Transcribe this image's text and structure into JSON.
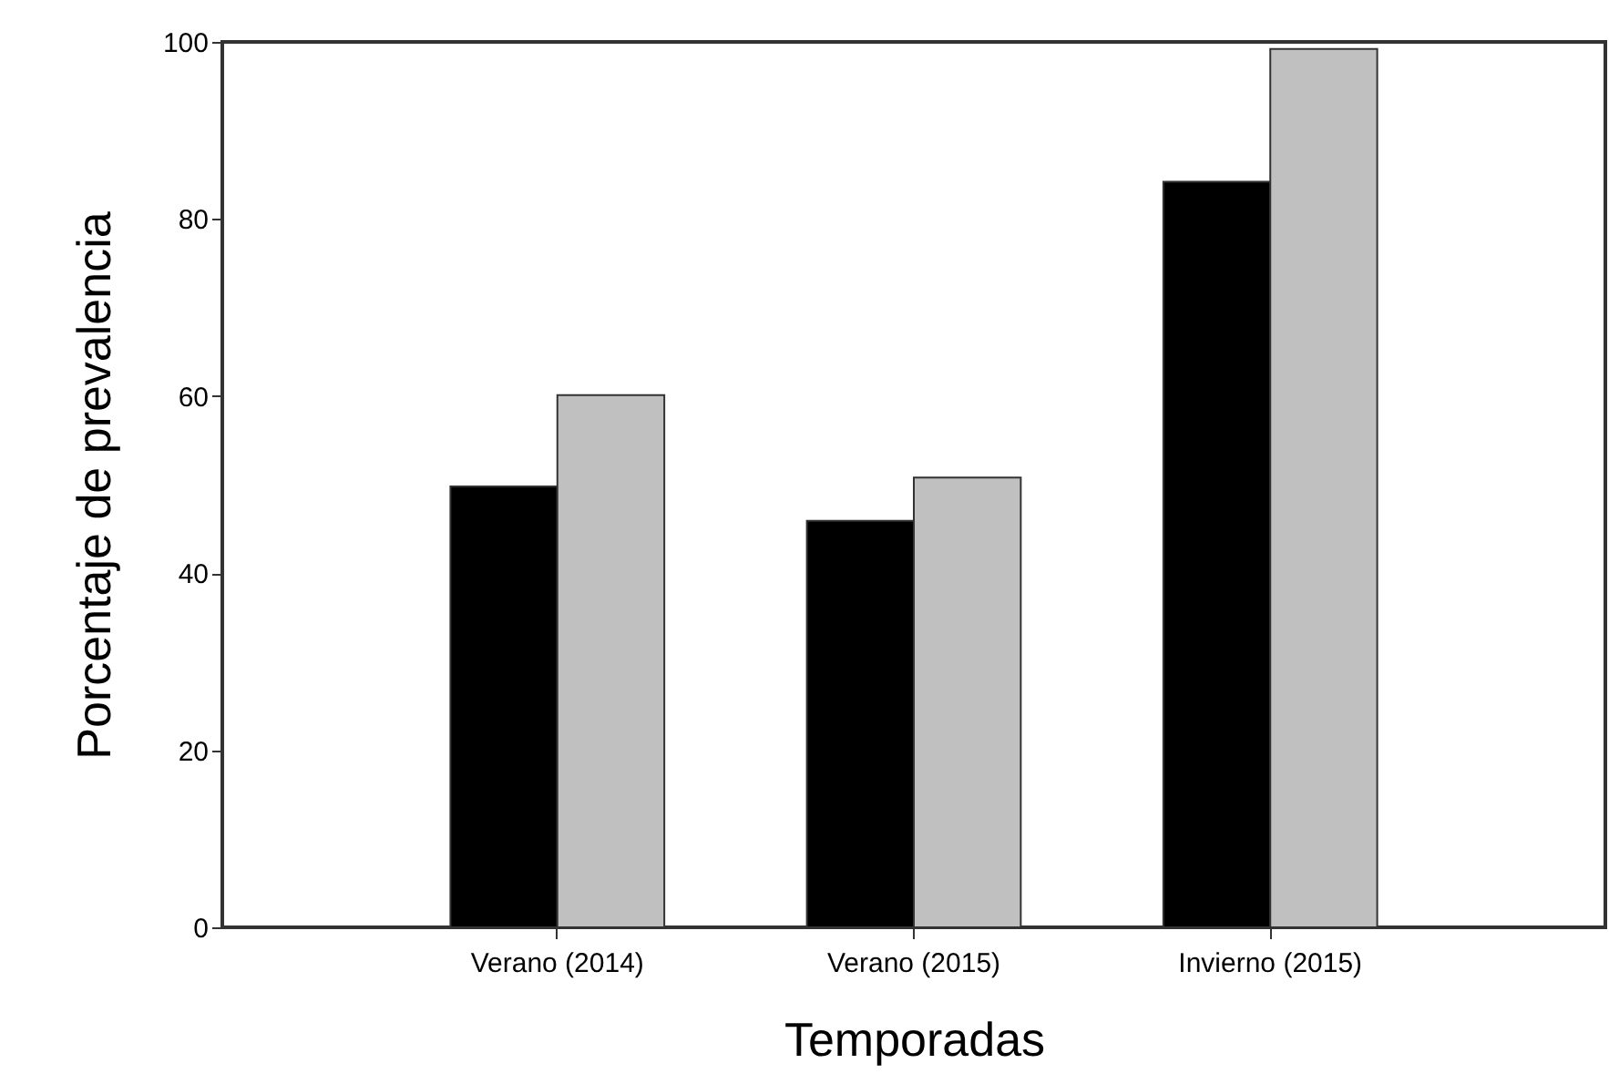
{
  "chart_data": {
    "type": "bar",
    "xlabel": "Temporadas",
    "ylabel": "Porcentaje de prevalencia",
    "categories": [
      "Verano (2014)",
      "Verano (2015)",
      "Invierno (2015)"
    ],
    "series": [
      {
        "color": "#000000",
        "values": [
          49.8,
          45.9,
          84.2
        ]
      },
      {
        "color": "#c0c0c0",
        "values": [
          60.1,
          50.8,
          99.2
        ]
      }
    ],
    "ylim": [
      0,
      100
    ],
    "yticks": [
      0,
      20,
      40,
      60,
      80,
      100
    ],
    "grid": false,
    "legend": false
  }
}
